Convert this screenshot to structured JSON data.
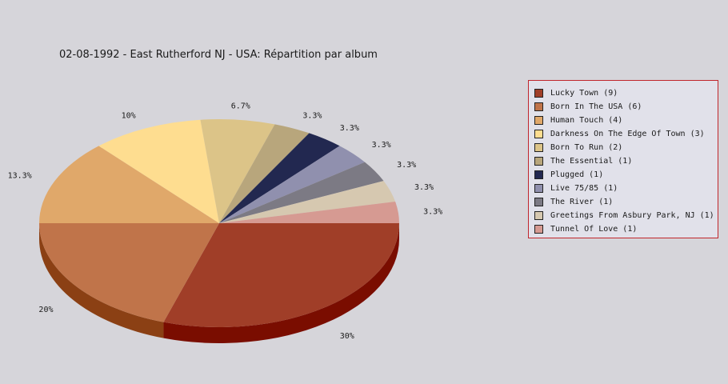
{
  "chart_data": {
    "type": "pie",
    "title": "02-08-1992 - East Rutherford NJ - USA:  Répartition par album",
    "slices": [
      {
        "label": "Lucky Town (9)",
        "value": 9,
        "pct_label": "30%",
        "color": "#a03e28",
        "side": "#7a0d00"
      },
      {
        "label": "Born In The USA (6)",
        "value": 6,
        "pct_label": "20%",
        "color": "#c0744a",
        "side": "#8b4014"
      },
      {
        "label": "Human Touch (4)",
        "value": 4,
        "pct_label": "13.3%",
        "color": "#e0a86a",
        "side": "#a36a2a"
      },
      {
        "label": "Darkness On The Edge Of Town (3)",
        "value": 3,
        "pct_label": "10%",
        "color": "#fedd90",
        "side": "#b89a50"
      },
      {
        "label": "Born To Run (2)",
        "value": 2,
        "pct_label": "6.7%",
        "color": "#dcc488",
        "side": "#9e8848"
      },
      {
        "label": "The Essential (1)",
        "value": 1,
        "pct_label": "3.3%",
        "color": "#b8a67c",
        "side": "#7e6c44"
      },
      {
        "label": "Plugged (1)",
        "value": 1,
        "pct_label": "3.3%",
        "color": "#222850",
        "side": "#10142a"
      },
      {
        "label": "Live 75/85 (1)",
        "value": 1,
        "pct_label": "3.3%",
        "color": "#9090ae",
        "side": "#5c5c7a"
      },
      {
        "label": "The River (1)",
        "value": 1,
        "pct_label": "3.3%",
        "color": "#7c7a84",
        "side": "#4c4a54"
      },
      {
        "label": "Greetings From Asbury Park, NJ (1)",
        "value": 1,
        "pct_label": "3.3%",
        "color": "#d6c8b0",
        "side": "#9c8e76"
      },
      {
        "label": "Tunnel Of Love (1)",
        "value": 1,
        "pct_label": "3.3%",
        "color": "#d69a92",
        "side": "#a0645c"
      }
    ],
    "legend_position": "right"
  }
}
